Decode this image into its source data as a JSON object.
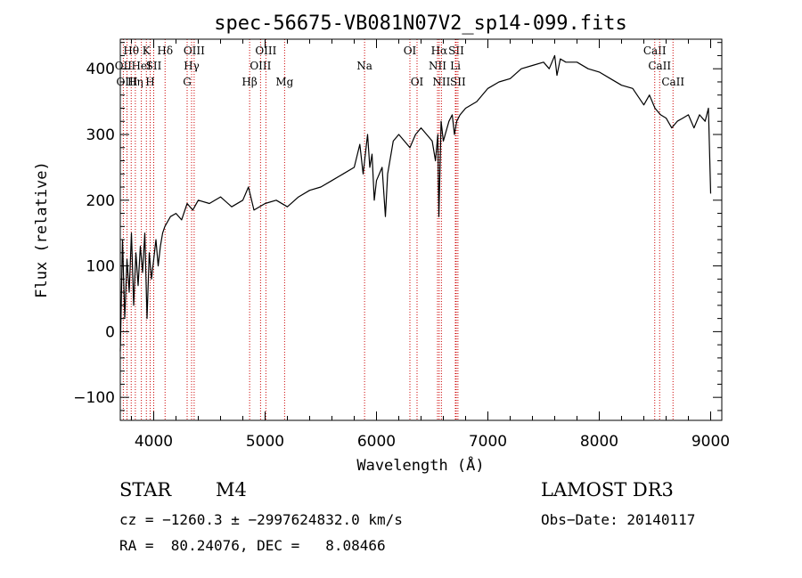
{
  "chart_data": {
    "type": "line",
    "title": "spec-56675-VB081N07V2_sp14-099.fits",
    "xlabel": "Wavelength (Å)",
    "ylabel": "Flux (relative)",
    "xlim": [
      3700,
      9100
    ],
    "ylim": [
      -135,
      445
    ],
    "xticks": [
      4000,
      5000,
      6000,
      7000,
      8000,
      9000
    ],
    "yticks": [
      -100,
      0,
      100,
      200,
      300,
      400
    ],
    "series": [
      {
        "name": "flux",
        "x": [
          3700,
          3720,
          3740,
          3760,
          3780,
          3800,
          3820,
          3840,
          3860,
          3880,
          3900,
          3920,
          3940,
          3960,
          3980,
          4000,
          4020,
          4040,
          4060,
          4080,
          4100,
          4150,
          4200,
          4250,
          4300,
          4350,
          4400,
          4500,
          4600,
          4700,
          4800,
          4850,
          4900,
          5000,
          5100,
          5200,
          5300,
          5400,
          5500,
          5600,
          5700,
          5800,
          5850,
          5880,
          5900,
          5920,
          5940,
          5960,
          5980,
          6000,
          6050,
          6080,
          6100,
          6130,
          6150,
          6200,
          6250,
          6300,
          6350,
          6400,
          6450,
          6500,
          6530,
          6550,
          6560,
          6580,
          6600,
          6650,
          6680,
          6700,
          6720,
          6750,
          6800,
          6900,
          7000,
          7100,
          7200,
          7300,
          7400,
          7500,
          7550,
          7600,
          7620,
          7650,
          7700,
          7800,
          7900,
          8000,
          8100,
          8200,
          8300,
          8400,
          8450,
          8500,
          8550,
          8600,
          8650,
          8700,
          8750,
          8800,
          8850,
          8900,
          8950,
          8980,
          9000
        ],
        "y": [
          -30,
          140,
          20,
          110,
          60,
          150,
          40,
          120,
          70,
          130,
          90,
          150,
          20,
          120,
          80,
          110,
          140,
          100,
          130,
          150,
          160,
          175,
          180,
          170,
          195,
          185,
          200,
          195,
          205,
          190,
          200,
          220,
          185,
          195,
          200,
          190,
          205,
          215,
          220,
          230,
          240,
          250,
          285,
          240,
          270,
          300,
          250,
          270,
          200,
          230,
          250,
          175,
          240,
          270,
          290,
          300,
          290,
          280,
          300,
          310,
          300,
          290,
          260,
          300,
          175,
          320,
          290,
          320,
          330,
          300,
          320,
          330,
          340,
          350,
          370,
          380,
          385,
          400,
          405,
          410,
          400,
          420,
          390,
          415,
          410,
          410,
          400,
          395,
          385,
          375,
          370,
          345,
          360,
          340,
          330,
          325,
          310,
          320,
          325,
          330,
          310,
          330,
          320,
          340,
          210
        ]
      }
    ],
    "lines": [
      {
        "label": "Hθ",
        "x": 3798,
        "row": 0
      },
      {
        "label": "OII",
        "x": 3727,
        "row": 1
      },
      {
        "label": "OIII",
        "x": 3760,
        "row": 2
      },
      {
        "label": "Hη",
        "x": 3835,
        "row": 2
      },
      {
        "label": "HeI",
        "x": 3889,
        "row": 1
      },
      {
        "label": "K",
        "x": 3934,
        "row": 0
      },
      {
        "label": "H",
        "x": 3968,
        "row": 2
      },
      {
        "label": "SII",
        "x": 4000,
        "row": 1
      },
      {
        "label": "Hδ",
        "x": 4102,
        "row": 0
      },
      {
        "label": "OIII",
        "x": 4363,
        "row": 0
      },
      {
        "label": "Hγ",
        "x": 4340,
        "row": 1
      },
      {
        "label": "G",
        "x": 4300,
        "row": 2
      },
      {
        "label": "Hβ",
        "x": 4861,
        "row": 2
      },
      {
        "label": "OIII",
        "x": 4959,
        "row": 1
      },
      {
        "label": "OIII",
        "x": 5007,
        "row": 0
      },
      {
        "label": "Mg",
        "x": 5175,
        "row": 2
      },
      {
        "label": "Na",
        "x": 5893,
        "row": 1
      },
      {
        "label": "OI",
        "x": 6300,
        "row": 0
      },
      {
        "label": "OI",
        "x": 6364,
        "row": 2
      },
      {
        "label": "Hα",
        "x": 6563,
        "row": 0
      },
      {
        "label": "NII",
        "x": 6548,
        "row": 1
      },
      {
        "label": "NII",
        "x": 6583,
        "row": 2
      },
      {
        "label": "SII",
        "x": 6716,
        "row": 0
      },
      {
        "label": "Li",
        "x": 6708,
        "row": 1
      },
      {
        "label": "SII",
        "x": 6731,
        "row": 2
      },
      {
        "label": "CaII",
        "x": 8498,
        "row": 0
      },
      {
        "label": "CaII",
        "x": 8542,
        "row": 1
      },
      {
        "label": "CaII",
        "x": 8662,
        "row": 2
      }
    ]
  },
  "info": {
    "object_class": "STAR",
    "subclass": "M4",
    "cz": "cz = −1260.3 ± −2997624832.0 km/s",
    "coords": "RA =  80.24076, DEC =   8.08466",
    "survey": "LAMOST DR3",
    "obs_date": "Obs−Date: 20140117"
  },
  "colors": {
    "line": "#000000",
    "marker": "#cc0000",
    "background": "#ffffff"
  }
}
